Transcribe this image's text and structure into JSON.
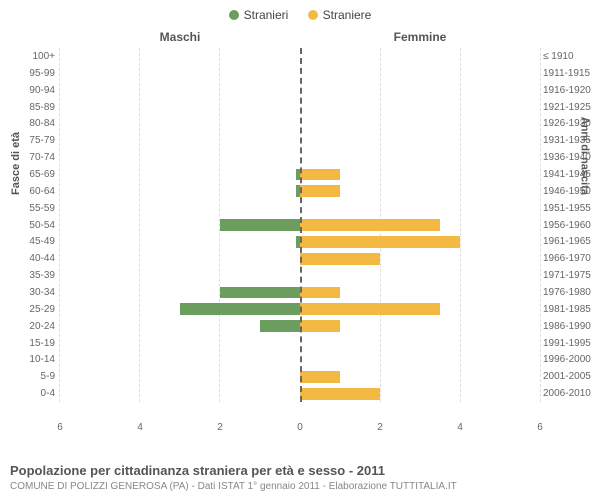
{
  "legend": {
    "male": {
      "label": "Stranieri",
      "color": "#6b9e5e"
    },
    "female": {
      "label": "Straniere",
      "color": "#f4b943"
    }
  },
  "column_titles": {
    "left": "Maschi",
    "right": "Femmine"
  },
  "axis_titles": {
    "left": "Fasce di età",
    "right": "Anni di nascita"
  },
  "x_axis": {
    "max": 6,
    "ticks": [
      0,
      2,
      4,
      6
    ]
  },
  "grid_color": "#dddddd",
  "zero_line_color": "#666666",
  "background_color": "#ffffff",
  "bar_height_ratio": 0.7,
  "rows": [
    {
      "age": "100+",
      "birth": "≤ 1910",
      "m": 0,
      "f": 0
    },
    {
      "age": "95-99",
      "birth": "1911-1915",
      "m": 0,
      "f": 0
    },
    {
      "age": "90-94",
      "birth": "1916-1920",
      "m": 0,
      "f": 0
    },
    {
      "age": "85-89",
      "birth": "1921-1925",
      "m": 0,
      "f": 0
    },
    {
      "age": "80-84",
      "birth": "1926-1930",
      "m": 0,
      "f": 0
    },
    {
      "age": "75-79",
      "birth": "1931-1935",
      "m": 0,
      "f": 0
    },
    {
      "age": "70-74",
      "birth": "1936-1940",
      "m": 0,
      "f": 0
    },
    {
      "age": "65-69",
      "birth": "1941-1945",
      "m": 0.1,
      "f": 1
    },
    {
      "age": "60-64",
      "birth": "1946-1950",
      "m": 0.1,
      "f": 1
    },
    {
      "age": "55-59",
      "birth": "1951-1955",
      "m": 0,
      "f": 0
    },
    {
      "age": "50-54",
      "birth": "1956-1960",
      "m": 2,
      "f": 3.5
    },
    {
      "age": "45-49",
      "birth": "1961-1965",
      "m": 0.1,
      "f": 4
    },
    {
      "age": "40-44",
      "birth": "1966-1970",
      "m": 0,
      "f": 2
    },
    {
      "age": "35-39",
      "birth": "1971-1975",
      "m": 0,
      "f": 0
    },
    {
      "age": "30-34",
      "birth": "1976-1980",
      "m": 2,
      "f": 1
    },
    {
      "age": "25-29",
      "birth": "1981-1985",
      "m": 3,
      "f": 3.5
    },
    {
      "age": "20-24",
      "birth": "1986-1990",
      "m": 1,
      "f": 1
    },
    {
      "age": "15-19",
      "birth": "1991-1995",
      "m": 0,
      "f": 0
    },
    {
      "age": "10-14",
      "birth": "1996-2000",
      "m": 0,
      "f": 0
    },
    {
      "age": "5-9",
      "birth": "2001-2005",
      "m": 0,
      "f": 1
    },
    {
      "age": "0-4",
      "birth": "2006-2010",
      "m": 0,
      "f": 2
    }
  ],
  "footer": {
    "title": "Popolazione per cittadinanza straniera per età e sesso - 2011",
    "subtitle": "COMUNE DI POLIZZI GENEROSA (PA) - Dati ISTAT 1° gennaio 2011 - Elaborazione TUTTITALIA.IT"
  }
}
